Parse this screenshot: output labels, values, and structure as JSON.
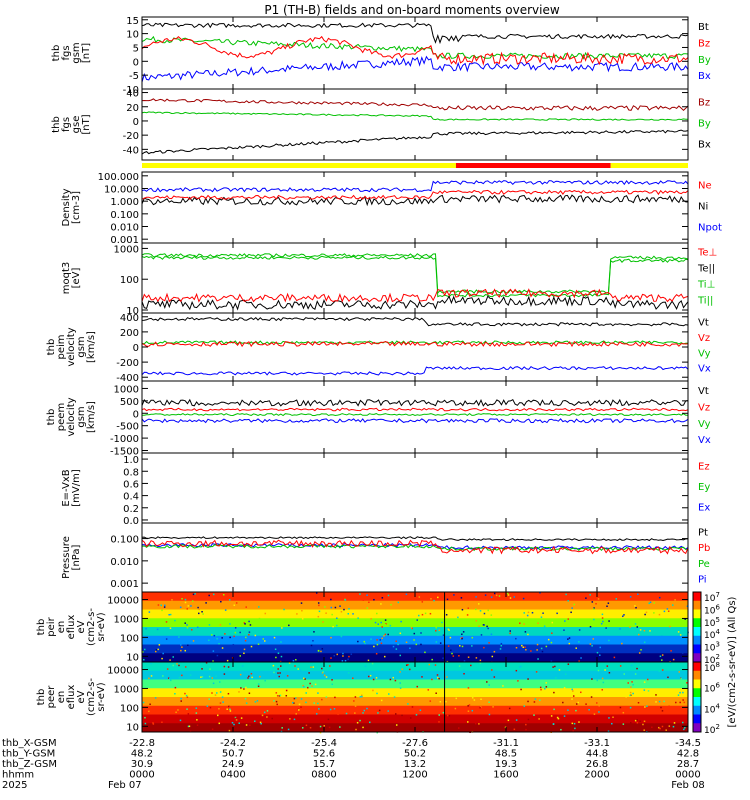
{
  "title": "P1 (TH-B) fields and on-board moments overview",
  "panels": [
    {
      "id": "fgs-gsm",
      "ylabel": [
        "thb",
        "fgs",
        "gsm",
        "[nT]"
      ],
      "ticks": [
        "15",
        "10",
        "5",
        "0",
        "-5",
        "-10"
      ],
      "ylim": [
        -10,
        16
      ],
      "legend": [
        {
          "label": "Bt",
          "color": "#000000"
        },
        {
          "label": "Bz",
          "color": "#ff0000"
        },
        {
          "label": "By",
          "color": "#00c000"
        },
        {
          "label": "Bx",
          "color": "#0000ff"
        }
      ]
    },
    {
      "id": "fgs-gse",
      "ylabel": [
        "thb",
        "fgs",
        "gse",
        "[nT]"
      ],
      "ticks": [
        "40",
        "20",
        "0",
        "-20",
        "-40"
      ],
      "ylim": [
        -55,
        45
      ],
      "legend": [
        {
          "label": "Bz",
          "color": "#a00000"
        },
        {
          "label": "By",
          "color": "#00c000"
        },
        {
          "label": "Bx",
          "color": "#000000"
        }
      ]
    },
    {
      "id": "density",
      "ylabel": [
        "Density",
        "[cm-3]"
      ],
      "ticks": [
        "100.000",
        "10.000",
        "1.000",
        "0.100",
        "0.010",
        "0.001"
      ],
      "log": true,
      "ylim": [
        0.0005,
        200
      ],
      "legend": [
        {
          "label": "Ne",
          "color": "#ff0000"
        },
        {
          "label": "Ni",
          "color": "#000000"
        },
        {
          "label": "Npot",
          "color": "#0000ff"
        }
      ]
    },
    {
      "id": "temperature",
      "ylabel": [
        "moqt3",
        "[eV]"
      ],
      "ticks": [
        "1000",
        "100",
        "10"
      ],
      "log": true,
      "ylim": [
        8,
        1500
      ],
      "legend": [
        {
          "label": "Te⊥",
          "color": "#ff0000"
        },
        {
          "label": "Te||",
          "color": "#000000"
        },
        {
          "label": "Ti⊥",
          "color": "#00c000"
        },
        {
          "label": "Ti||",
          "color": "#00c000"
        }
      ]
    },
    {
      "id": "peim-velocity",
      "ylabel": [
        "thb",
        "peim",
        "velocity",
        "gsm",
        "[km/s]"
      ],
      "ticks": [
        "400",
        "200",
        "0",
        "-200",
        "-400"
      ],
      "ylim": [
        -450,
        450
      ],
      "legend": [
        {
          "label": "Vt",
          "color": "#000000"
        },
        {
          "label": "Vz",
          "color": "#ff0000"
        },
        {
          "label": "Vy",
          "color": "#00c000"
        },
        {
          "label": "Vx",
          "color": "#0000ff"
        }
      ]
    },
    {
      "id": "peem-velocity",
      "ylabel": [
        "thb",
        "peem",
        "velocity",
        "gsm",
        "[km/s]"
      ],
      "ticks": [
        "1000",
        "500",
        "0",
        "-500",
        "-1000",
        "-1500"
      ],
      "ylim": [
        -1600,
        1300
      ],
      "legend": [
        {
          "label": "Vt",
          "color": "#000000"
        },
        {
          "label": "Vz",
          "color": "#ff0000"
        },
        {
          "label": "Vy",
          "color": "#00c000"
        },
        {
          "label": "Vx",
          "color": "#0000ff"
        }
      ]
    },
    {
      "id": "efield",
      "ylabel": [
        "E=-VxB",
        "[mV/m]"
      ],
      "ticks": [
        "1.0",
        "0.8",
        "0.6",
        "0.4",
        "0.2",
        "0.0"
      ],
      "ylim": [
        -0.05,
        1.1
      ],
      "legend": [
        {
          "label": "Ez",
          "color": "#ff0000"
        },
        {
          "label": "Ey",
          "color": "#00c000"
        },
        {
          "label": "Ex",
          "color": "#0000ff"
        }
      ]
    },
    {
      "id": "pressure",
      "ylabel": [
        "Pressure",
        "[nPa]"
      ],
      "ticks": [
        "0.100",
        "0.010",
        "0.001"
      ],
      "log": true,
      "ylim": [
        0.0004,
        0.5
      ],
      "legend": [
        {
          "label": "Pt",
          "color": "#000000"
        },
        {
          "label": "Pb",
          "color": "#ff0000"
        },
        {
          "label": "Pe",
          "color": "#00c000"
        },
        {
          "label": "Pi",
          "color": "#0000ff"
        }
      ]
    },
    {
      "id": "peir-spectrogram",
      "ylabel": [
        "thb",
        "peir",
        "en",
        "eflux",
        "eV",
        "(cm2-s-",
        "sr-eV)"
      ],
      "ticks": [
        "10000",
        "1000",
        "100",
        "10"
      ],
      "log": true,
      "ylim": [
        5,
        25000
      ]
    },
    {
      "id": "peer-spectrogram",
      "ylabel": [
        "thb",
        "peer",
        "en",
        "eflux",
        "eV",
        "(cm2-s-",
        "sr-eV)"
      ],
      "ticks": [
        "10000",
        "1000",
        "100",
        "10"
      ],
      "log": true,
      "ylim": [
        5,
        25000
      ]
    }
  ],
  "colorbar": {
    "label": "[eV/(cm2-s-sr-eV)] (All Qs)",
    "ion_ticks": [
      "10^7",
      "10^6",
      "10^5",
      "10^4",
      "10^3",
      "10^2"
    ],
    "electron_ticks": [
      "10^8",
      "10^6",
      "10^4",
      "10^2"
    ]
  },
  "footer_rows": [
    {
      "label": "thb_X-GSM",
      "values": [
        "-22.8",
        "-24.2",
        "-25.4",
        "-27.6",
        "-31.1",
        "-33.1",
        "-34.5"
      ]
    },
    {
      "label": "thb_Y-GSM",
      "values": [
        "48.2",
        "50.7",
        "52.6",
        "50.2",
        "48.5",
        "44.8",
        "42.8"
      ]
    },
    {
      "label": "thb_Z-GSM",
      "values": [
        "30.9",
        "24.9",
        "15.7",
        "13.2",
        "19.3",
        "26.8",
        "28.7"
      ]
    },
    {
      "label": "hhmm",
      "values": [
        "0000",
        "0400",
        "0800",
        "1200",
        "1600",
        "2000",
        "0000"
      ]
    },
    {
      "label": "2025",
      "values": [
        "Feb 07",
        "",
        "",
        "",
        "",
        "",
        "Feb 08"
      ]
    }
  ],
  "chart_data": {
    "type": "line",
    "x_label": "hhmm",
    "x_ticks_hours": [
      0,
      4,
      8,
      12,
      16,
      20,
      24
    ],
    "date_start": "2025 Feb 07",
    "date_end": "Feb 08",
    "mode_bar": [
      {
        "from": 0,
        "to": 13.8,
        "color": "#ffff00"
      },
      {
        "from": 13.8,
        "to": 20.6,
        "color": "#ff0000"
      },
      {
        "from": 20.6,
        "to": 24,
        "color": "#ffff00"
      }
    ],
    "series_hint": "Bt about 13 nT before 12h, ~9 nT after; disturbance near 13h"
  }
}
